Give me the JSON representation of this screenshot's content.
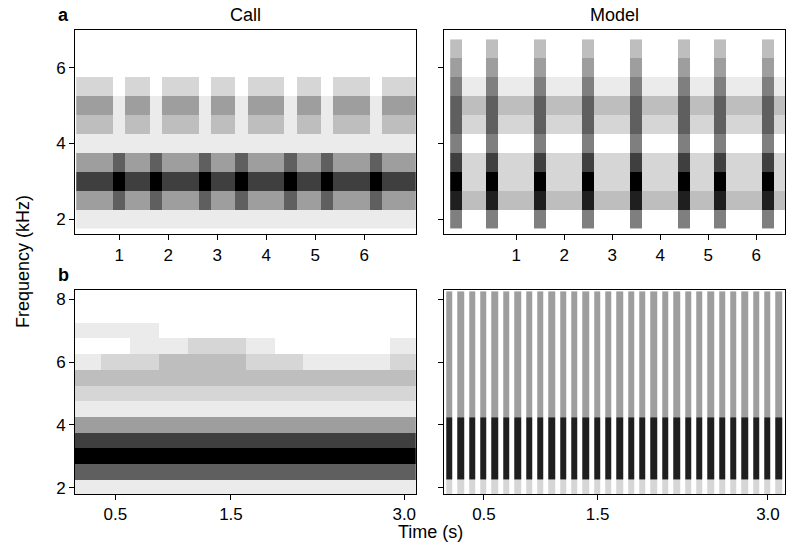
{
  "figure": {
    "xlabel": "Time (s)",
    "ylabel": "Frequency (kHz)"
  },
  "chart_data": [
    {
      "type": "heatmap",
      "title": "Call",
      "label": "a",
      "xlim": [
        0.1,
        7.05
      ],
      "ylim": [
        1.6,
        7.0
      ],
      "xticks": [
        1,
        2,
        3,
        4,
        5,
        6
      ],
      "yticks": [
        2,
        4,
        6
      ],
      "zlim": [
        0,
        9
      ],
      "x": [
        0.25,
        0.5,
        0.75,
        1,
        1.25,
        1.5,
        1.75,
        2,
        2.25,
        2.5,
        2.75,
        3,
        3.25,
        3.5,
        3.75,
        4,
        4.25,
        4.5,
        4.75,
        5,
        5.25,
        5.5,
        5.75,
        6,
        6.25,
        6.5,
        6.75,
        7
      ],
      "y": [
        2,
        2.5,
        3,
        3.5,
        4,
        4.5,
        5,
        5.5,
        6,
        6.5
      ],
      "z": [
        [
          1,
          1,
          1,
          1,
          1,
          1,
          1,
          1,
          1,
          1,
          1,
          1,
          1,
          1,
          1,
          1,
          1,
          1,
          1,
          1,
          1,
          1,
          1,
          1,
          1,
          1,
          1,
          1
        ],
        [
          4,
          4,
          4,
          6,
          4,
          4,
          6,
          4,
          4,
          4,
          6,
          4,
          4,
          6,
          4,
          4,
          4,
          6,
          4,
          4,
          6,
          4,
          4,
          4,
          6,
          4,
          4,
          4
        ],
        [
          7,
          7,
          7,
          9,
          7,
          7,
          9,
          7,
          7,
          7,
          9,
          7,
          7,
          9,
          7,
          7,
          7,
          9,
          7,
          7,
          9,
          7,
          7,
          7,
          9,
          7,
          7,
          7
        ],
        [
          4,
          4,
          4,
          6,
          4,
          4,
          6,
          4,
          4,
          4,
          6,
          4,
          4,
          6,
          4,
          4,
          4,
          6,
          4,
          4,
          6,
          4,
          4,
          4,
          6,
          4,
          4,
          4
        ],
        [
          1,
          1,
          1,
          1,
          1,
          1,
          1,
          1,
          1,
          1,
          1,
          1,
          1,
          1,
          1,
          1,
          1,
          1,
          1,
          1,
          1,
          1,
          1,
          1,
          1,
          1,
          1,
          1
        ],
        [
          3,
          3,
          3,
          1,
          3,
          3,
          1,
          3,
          3,
          3,
          1,
          3,
          3,
          1,
          3,
          3,
          3,
          1,
          3,
          3,
          1,
          3,
          3,
          3,
          1,
          3,
          3,
          3
        ],
        [
          4,
          4,
          4,
          1,
          4,
          4,
          1,
          4,
          4,
          4,
          1,
          4,
          4,
          1,
          4,
          4,
          4,
          1,
          4,
          4,
          1,
          4,
          4,
          4,
          1,
          4,
          4,
          4
        ],
        [
          2,
          2,
          2,
          0,
          2,
          2,
          0,
          2,
          2,
          2,
          0,
          2,
          2,
          0,
          2,
          2,
          2,
          0,
          2,
          2,
          0,
          2,
          2,
          2,
          0,
          2,
          2,
          2
        ],
        [
          0,
          0,
          0,
          0,
          0,
          0,
          0,
          0,
          0,
          0,
          0,
          0,
          0,
          0,
          0,
          0,
          0,
          0,
          0,
          0,
          0,
          0,
          0,
          0,
          0,
          0,
          0,
          0
        ],
        [
          0,
          0,
          0,
          0,
          0,
          0,
          0,
          0,
          0,
          0,
          0,
          0,
          0,
          0,
          0,
          0,
          0,
          0,
          0,
          0,
          0,
          0,
          0,
          0,
          0,
          0,
          0,
          0
        ]
      ]
    },
    {
      "type": "heatmap",
      "title": "Model",
      "tick_labels": "x",
      "xlim": [
        -0.5,
        6.6
      ],
      "ylim": [
        1.6,
        7.0
      ],
      "xticks": [
        1,
        2,
        3,
        4,
        5,
        6
      ],
      "yticks": [
        2,
        4,
        6
      ],
      "zlim": [
        0,
        9
      ],
      "x": [
        -0.25,
        0,
        0.25,
        0.5,
        0.75,
        1,
        1.25,
        1.5,
        1.75,
        2,
        2.25,
        2.5,
        2.75,
        3,
        3.25,
        3.5,
        3.75,
        4,
        4.25,
        4.5,
        4.75,
        5,
        5.25,
        5.5,
        5.75,
        6,
        6.25,
        6.5
      ],
      "y": [
        2,
        2.5,
        3,
        3.5,
        4,
        4.5,
        5,
        5.5,
        6,
        6.5
      ],
      "z": [
        [
          5,
          0,
          0,
          5,
          0,
          0,
          0,
          5,
          0,
          0,
          0,
          5,
          0,
          0,
          0,
          5,
          0,
          0,
          0,
          5,
          0,
          0,
          5,
          0,
          0,
          0,
          5,
          0
        ],
        [
          8,
          3,
          3,
          8,
          3,
          3,
          3,
          8,
          3,
          3,
          3,
          8,
          3,
          3,
          3,
          8,
          3,
          3,
          3,
          8,
          3,
          3,
          8,
          3,
          3,
          3,
          8,
          3
        ],
        [
          9,
          2,
          2,
          9,
          2,
          2,
          2,
          9,
          2,
          2,
          2,
          9,
          2,
          2,
          2,
          9,
          2,
          2,
          2,
          9,
          2,
          2,
          9,
          2,
          2,
          2,
          9,
          2
        ],
        [
          7,
          2,
          2,
          7,
          2,
          2,
          2,
          7,
          2,
          2,
          2,
          7,
          2,
          2,
          2,
          7,
          2,
          2,
          2,
          7,
          2,
          2,
          7,
          2,
          2,
          2,
          7,
          2
        ],
        [
          5,
          0,
          0,
          5,
          0,
          0,
          0,
          5,
          0,
          0,
          0,
          5,
          0,
          0,
          0,
          5,
          0,
          0,
          0,
          5,
          0,
          0,
          5,
          0,
          0,
          0,
          5,
          0
        ],
        [
          6,
          2,
          2,
          6,
          2,
          2,
          2,
          6,
          2,
          2,
          2,
          6,
          2,
          2,
          2,
          6,
          2,
          2,
          2,
          6,
          2,
          2,
          6,
          2,
          2,
          2,
          6,
          2
        ],
        [
          6,
          3,
          3,
          6,
          3,
          3,
          3,
          6,
          3,
          3,
          3,
          6,
          3,
          3,
          3,
          6,
          3,
          3,
          3,
          6,
          3,
          3,
          6,
          3,
          3,
          3,
          6,
          3
        ],
        [
          5,
          1,
          1,
          5,
          1,
          1,
          1,
          5,
          1,
          1,
          1,
          5,
          1,
          1,
          1,
          5,
          1,
          1,
          1,
          5,
          1,
          1,
          5,
          1,
          1,
          1,
          5,
          1
        ],
        [
          4,
          0,
          0,
          4,
          0,
          0,
          0,
          4,
          0,
          0,
          0,
          4,
          0,
          0,
          0,
          4,
          0,
          0,
          0,
          4,
          0,
          0,
          4,
          0,
          0,
          0,
          4,
          0
        ],
        [
          3,
          0,
          0,
          3,
          0,
          0,
          0,
          3,
          0,
          0,
          0,
          3,
          0,
          0,
          0,
          3,
          0,
          0,
          0,
          3,
          0,
          0,
          3,
          0,
          0,
          0,
          3,
          0
        ]
      ]
    },
    {
      "type": "heatmap",
      "label": "b",
      "xlim": [
        0.15,
        3.1
      ],
      "ylim": [
        1.8,
        8.3
      ],
      "xticks": [
        0.5,
        1.5,
        {
          "value": 3,
          "label": "3.0"
        }
      ],
      "yticks": [
        2,
        4,
        6,
        8
      ],
      "zlim": [
        0,
        9
      ],
      "x": [
        0.25,
        0.5,
        0.75,
        1,
        1.25,
        1.5,
        1.75,
        2,
        2.25,
        2.5,
        2.75,
        3
      ],
      "y": [
        2,
        2.5,
        3,
        3.5,
        4,
        4.5,
        5,
        5.5,
        6,
        6.5,
        7,
        7.5,
        8
      ],
      "z": [
        [
          1,
          1,
          1,
          1,
          1,
          1,
          1,
          1,
          1,
          1,
          1,
          1
        ],
        [
          6,
          6,
          6,
          6,
          6,
          6,
          6,
          6,
          6,
          6,
          6,
          6
        ],
        [
          9,
          9,
          9,
          9,
          9,
          9,
          9,
          9,
          9,
          9,
          9,
          9
        ],
        [
          7,
          7,
          7,
          7,
          7,
          7,
          7,
          7,
          7,
          7,
          7,
          7
        ],
        [
          4,
          4,
          4,
          4,
          4,
          4,
          4,
          4,
          4,
          4,
          4,
          4
        ],
        [
          1,
          1,
          1,
          1,
          1,
          1,
          1,
          1,
          1,
          1,
          1,
          1
        ],
        [
          2,
          2,
          2,
          2,
          2,
          2,
          2,
          2,
          2,
          2,
          2,
          2
        ],
        [
          3,
          3,
          3,
          3,
          3,
          3,
          3,
          3,
          3,
          3,
          3,
          3
        ],
        [
          1,
          2,
          2,
          3,
          3,
          3,
          2,
          2,
          1,
          1,
          1,
          2
        ],
        [
          0,
          0,
          1,
          1,
          2,
          2,
          1,
          0,
          0,
          0,
          0,
          1
        ],
        [
          1,
          1,
          1,
          0,
          0,
          0,
          0,
          0,
          0,
          0,
          0,
          0
        ],
        [
          0,
          0,
          0,
          0,
          0,
          0,
          0,
          0,
          0,
          0,
          0,
          0
        ],
        [
          0,
          0,
          0,
          0,
          0,
          0,
          0,
          0,
          0,
          0,
          0,
          0
        ]
      ]
    },
    {
      "type": "heatmap",
      "tick_labels": "x",
      "xlim": [
        0.15,
        3.15
      ],
      "ylim": [
        1.8,
        8.3
      ],
      "xticks": [
        0.5,
        1.5,
        {
          "value": 3,
          "label": "3.0"
        }
      ],
      "yticks": [
        2,
        4,
        6,
        8
      ],
      "zlim": [
        0,
        9
      ],
      "x": [
        0.2,
        0.3,
        0.4,
        0.5,
        0.6,
        0.7,
        0.8,
        0.9,
        1,
        1.1,
        1.2,
        1.3,
        1.4,
        1.5,
        1.6,
        1.7,
        1.8,
        1.9,
        2,
        2.1,
        2.2,
        2.3,
        2.4,
        2.5,
        2.6,
        2.7,
        2.8,
        2.9,
        3,
        3.1
      ],
      "y": [
        2,
        2.5,
        3,
        3.5,
        4,
        4.5,
        5,
        5.5,
        6,
        6.5,
        7,
        7.5,
        8
      ],
      "z": [
        [
          2,
          2,
          2,
          2,
          2,
          2,
          2,
          2,
          2,
          2,
          2,
          2,
          2,
          2,
          2,
          2,
          2,
          2,
          2,
          2,
          2,
          2,
          2,
          2,
          2,
          2,
          2,
          2,
          2,
          2
        ],
        [
          8,
          8,
          8,
          8,
          8,
          8,
          8,
          8,
          8,
          8,
          8,
          8,
          8,
          8,
          8,
          8,
          8,
          8,
          8,
          8,
          8,
          8,
          8,
          8,
          8,
          8,
          8,
          8,
          8,
          8
        ],
        [
          8,
          8,
          8,
          8,
          8,
          8,
          8,
          8,
          8,
          8,
          8,
          8,
          8,
          8,
          8,
          8,
          8,
          8,
          8,
          8,
          8,
          8,
          8,
          8,
          8,
          8,
          8,
          8,
          8,
          8
        ],
        [
          8,
          8,
          8,
          8,
          8,
          8,
          8,
          8,
          8,
          8,
          8,
          8,
          8,
          8,
          8,
          8,
          8,
          8,
          8,
          8,
          8,
          8,
          8,
          8,
          8,
          8,
          8,
          8,
          8,
          8
        ],
        [
          8,
          8,
          8,
          8,
          8,
          8,
          8,
          8,
          8,
          8,
          8,
          8,
          8,
          8,
          8,
          8,
          8,
          8,
          8,
          8,
          8,
          8,
          8,
          8,
          8,
          8,
          8,
          8,
          8,
          8
        ],
        [
          4,
          4,
          4,
          4,
          4,
          4,
          4,
          4,
          4,
          4,
          4,
          4,
          4,
          4,
          4,
          4,
          4,
          4,
          4,
          4,
          4,
          4,
          4,
          4,
          4,
          4,
          4,
          4,
          4,
          4
        ],
        [
          4,
          4,
          4,
          4,
          4,
          4,
          4,
          4,
          4,
          4,
          4,
          4,
          4,
          4,
          4,
          4,
          4,
          4,
          4,
          4,
          4,
          4,
          4,
          4,
          4,
          4,
          4,
          4,
          4,
          4
        ],
        [
          4,
          4,
          4,
          4,
          4,
          4,
          4,
          4,
          4,
          4,
          4,
          4,
          4,
          4,
          4,
          4,
          4,
          4,
          4,
          4,
          4,
          4,
          4,
          4,
          4,
          4,
          4,
          4,
          4,
          4
        ],
        [
          4,
          4,
          4,
          4,
          4,
          4,
          4,
          4,
          4,
          4,
          4,
          4,
          4,
          4,
          4,
          4,
          4,
          4,
          4,
          4,
          4,
          4,
          4,
          4,
          4,
          4,
          4,
          4,
          4,
          4
        ],
        [
          4,
          4,
          4,
          4,
          4,
          4,
          4,
          4,
          4,
          4,
          4,
          4,
          4,
          4,
          4,
          4,
          4,
          4,
          4,
          4,
          4,
          4,
          4,
          4,
          4,
          4,
          4,
          4,
          4,
          4
        ],
        [
          4,
          4,
          4,
          4,
          4,
          4,
          4,
          4,
          4,
          4,
          4,
          4,
          4,
          4,
          4,
          4,
          4,
          4,
          4,
          4,
          4,
          4,
          4,
          4,
          4,
          4,
          4,
          4,
          4,
          4
        ],
        [
          4,
          4,
          4,
          4,
          4,
          4,
          4,
          4,
          4,
          4,
          4,
          4,
          4,
          4,
          4,
          4,
          4,
          4,
          4,
          4,
          4,
          4,
          4,
          4,
          4,
          4,
          4,
          4,
          4,
          4
        ],
        [
          4,
          4,
          4,
          4,
          4,
          4,
          4,
          4,
          4,
          4,
          4,
          4,
          4,
          4,
          4,
          4,
          4,
          4,
          4,
          4,
          4,
          4,
          4,
          4,
          4,
          4,
          4,
          4,
          4,
          4
        ]
      ]
    }
  ]
}
